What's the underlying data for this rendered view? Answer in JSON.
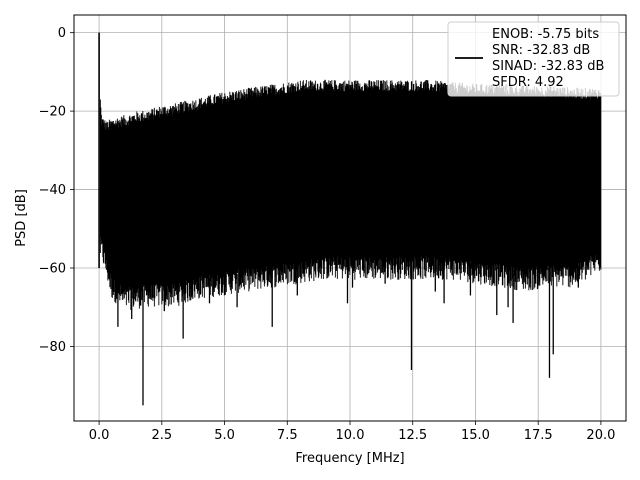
{
  "chart_data": {
    "type": "line",
    "title": "",
    "xlabel": "Frequency [MHz]",
    "ylabel": "PSD [dB]",
    "xlim": [
      -1.0,
      21.0
    ],
    "ylim": [
      -99.0,
      4.5
    ],
    "x_ticks": [
      0.0,
      2.5,
      5.0,
      7.5,
      10.0,
      12.5,
      15.0,
      17.5,
      20.0
    ],
    "x_tick_labels": [
      "0.0",
      "2.5",
      "5.0",
      "7.5",
      "10.0",
      "12.5",
      "15.0",
      "17.5",
      "20.0"
    ],
    "y_ticks": [
      0,
      -20,
      -40,
      -60,
      -80
    ],
    "y_tick_labels": [
      "0",
      "−20",
      "−40",
      "−60",
      "−80"
    ],
    "grid": true,
    "legend_placement": "upper-right",
    "legend_lines": [
      "ENOB: -5.75 bits",
      "SNR: -32.83 dB",
      "SINAD: -32.83 dB",
      "SFDR: 4.92"
    ],
    "series": [
      {
        "color": "#000000",
        "spike": {
          "x": 0.0,
          "y": 0.0
        },
        "upper_envelope": {
          "x": [
            0.05,
            0.1,
            0.3,
            0.6,
            1.0,
            1.5,
            2.0,
            2.5,
            3.0,
            4.0,
            5.0,
            6.0,
            7.0,
            8.0,
            9.0,
            10.0,
            11.0,
            12.0,
            13.0,
            14.0,
            15.0,
            16.0,
            17.0,
            18.0,
            19.0,
            20.0
          ],
          "y": [
            -18,
            -23,
            -24.5,
            -23.5,
            -23,
            -22,
            -21.5,
            -20.5,
            -20,
            -18.5,
            -17,
            -16,
            -15,
            -14,
            -14,
            -14,
            -14,
            -14,
            -14,
            -14.5,
            -15,
            -15,
            -15.5,
            -15.5,
            -16,
            -16
          ]
        },
        "lower_envelope": {
          "x": [
            0.1,
            0.5,
            1.0,
            2.0,
            3.0,
            4.0,
            5.0,
            6.0,
            7.0,
            8.0,
            9.0,
            10.0,
            11.0,
            12.0,
            13.0,
            14.0,
            15.0,
            16.0,
            17.0,
            18.0,
            19.0,
            20.0
          ],
          "y": [
            -55,
            -65,
            -68,
            -67,
            -67,
            -65,
            -64,
            -63,
            -62,
            -61,
            -60,
            -60,
            -60,
            -60,
            -60,
            -60,
            -61,
            -62,
            -63,
            -62,
            -62,
            -58
          ]
        },
        "deep_dips": [
          {
            "x": 0.75,
            "y": -75
          },
          {
            "x": 1.3,
            "y": -73
          },
          {
            "x": 1.75,
            "y": -95
          },
          {
            "x": 2.6,
            "y": -71
          },
          {
            "x": 3.35,
            "y": -78
          },
          {
            "x": 4.4,
            "y": -69
          },
          {
            "x": 5.5,
            "y": -70
          },
          {
            "x": 6.9,
            "y": -75
          },
          {
            "x": 7.9,
            "y": -67
          },
          {
            "x": 9.9,
            "y": -69
          },
          {
            "x": 10.1,
            "y": -65
          },
          {
            "x": 11.4,
            "y": -64
          },
          {
            "x": 12.45,
            "y": -86
          },
          {
            "x": 13.4,
            "y": -66
          },
          {
            "x": 13.75,
            "y": -69
          },
          {
            "x": 14.8,
            "y": -67
          },
          {
            "x": 15.85,
            "y": -72
          },
          {
            "x": 16.3,
            "y": -70
          },
          {
            "x": 16.5,
            "y": -74
          },
          {
            "x": 17.4,
            "y": -64
          },
          {
            "x": 17.95,
            "y": -88
          },
          {
            "x": 18.1,
            "y": -82
          },
          {
            "x": 19.1,
            "y": -65
          }
        ]
      }
    ]
  }
}
